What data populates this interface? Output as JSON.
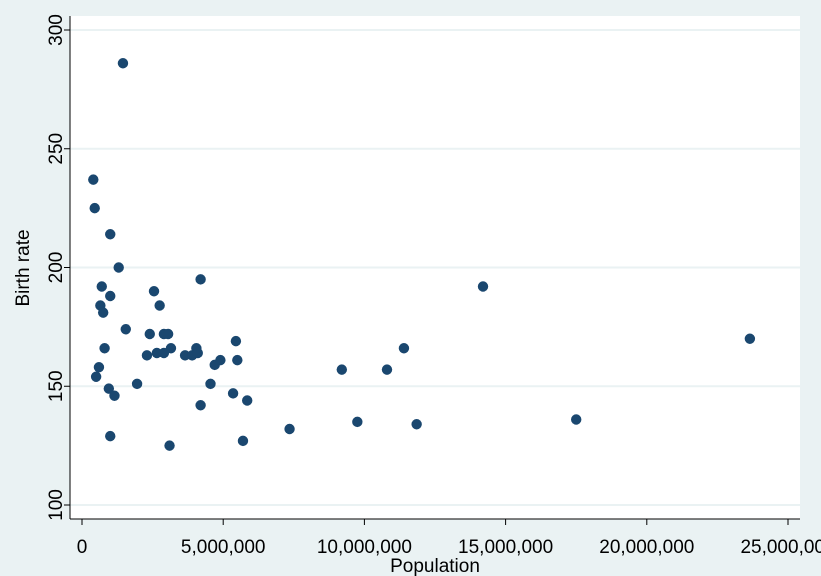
{
  "chart_data": {
    "type": "scatter",
    "title": "",
    "xlabel": "Population",
    "ylabel": "Birth rate",
    "xlim": [
      0,
      25000000
    ],
    "ylim": [
      100,
      300
    ],
    "xticks": [
      0,
      5000000,
      10000000,
      15000000,
      20000000,
      25000000
    ],
    "xtick_labels": [
      "0",
      "5,000,000",
      "10,000,000",
      "15,000,000",
      "20,000,000",
      "25,000,000"
    ],
    "yticks": [
      100,
      150,
      200,
      250,
      300
    ],
    "ytick_labels": [
      "100",
      "150",
      "200",
      "250",
      "300"
    ],
    "grid": "horizontal",
    "colors": {
      "background": "#eaf2f3",
      "plot_bg": "#ffffff",
      "grid": "#eaf2f3",
      "marker": "#1a476f"
    },
    "points": [
      {
        "x": 400000,
        "y": 237
      },
      {
        "x": 450000,
        "y": 225
      },
      {
        "x": 500000,
        "y": 154
      },
      {
        "x": 600000,
        "y": 158
      },
      {
        "x": 650000,
        "y": 184
      },
      {
        "x": 700000,
        "y": 192
      },
      {
        "x": 750000,
        "y": 181
      },
      {
        "x": 800000,
        "y": 166
      },
      {
        "x": 950000,
        "y": 149
      },
      {
        "x": 1000000,
        "y": 188
      },
      {
        "x": 1000000,
        "y": 214
      },
      {
        "x": 1000000,
        "y": 129
      },
      {
        "x": 1150000,
        "y": 146
      },
      {
        "x": 1300000,
        "y": 200
      },
      {
        "x": 1450000,
        "y": 286
      },
      {
        "x": 1550000,
        "y": 174
      },
      {
        "x": 1950000,
        "y": 151
      },
      {
        "x": 2300000,
        "y": 163
      },
      {
        "x": 2400000,
        "y": 172
      },
      {
        "x": 2550000,
        "y": 190
      },
      {
        "x": 2650000,
        "y": 164
      },
      {
        "x": 2750000,
        "y": 184
      },
      {
        "x": 2900000,
        "y": 172
      },
      {
        "x": 2900000,
        "y": 164
      },
      {
        "x": 3050000,
        "y": 172
      },
      {
        "x": 3100000,
        "y": 125
      },
      {
        "x": 3150000,
        "y": 166
      },
      {
        "x": 3650000,
        "y": 163
      },
      {
        "x": 3900000,
        "y": 163
      },
      {
        "x": 4050000,
        "y": 166
      },
      {
        "x": 4100000,
        "y": 164
      },
      {
        "x": 4200000,
        "y": 195
      },
      {
        "x": 4200000,
        "y": 142
      },
      {
        "x": 4550000,
        "y": 151
      },
      {
        "x": 4700000,
        "y": 159
      },
      {
        "x": 4900000,
        "y": 161
      },
      {
        "x": 5350000,
        "y": 147
      },
      {
        "x": 5450000,
        "y": 169
      },
      {
        "x": 5500000,
        "y": 161
      },
      {
        "x": 5700000,
        "y": 127
      },
      {
        "x": 5850000,
        "y": 144
      },
      {
        "x": 7350000,
        "y": 132
      },
      {
        "x": 9200000,
        "y": 157
      },
      {
        "x": 9750000,
        "y": 135
      },
      {
        "x": 10800000,
        "y": 157
      },
      {
        "x": 11400000,
        "y": 166
      },
      {
        "x": 11850000,
        "y": 134
      },
      {
        "x": 14200000,
        "y": 192
      },
      {
        "x": 17500000,
        "y": 136
      },
      {
        "x": 23650000,
        "y": 170
      }
    ]
  }
}
